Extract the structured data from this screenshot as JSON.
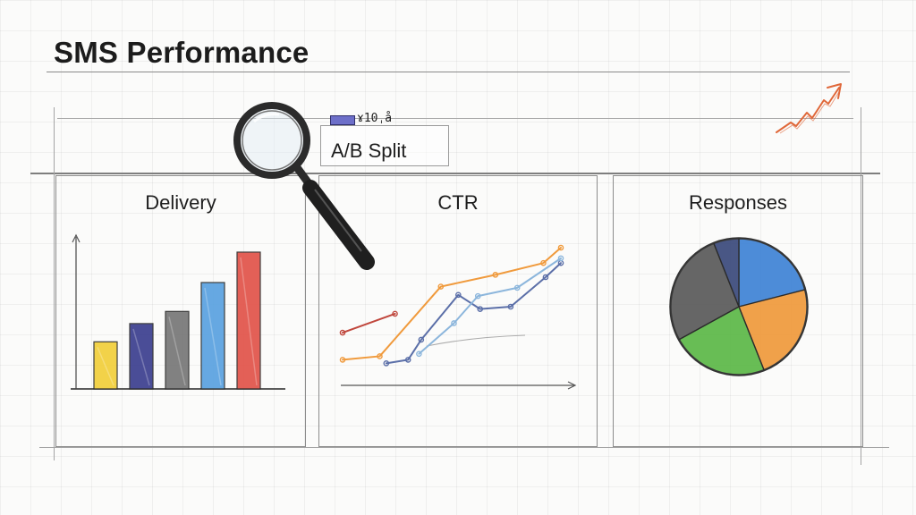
{
  "page": {
    "title": "SMS Performance",
    "ab_label": "A/B Split",
    "ab_legend_text": "ɤ10ˌå"
  },
  "icons": [
    "magnifier-icon",
    "trend-up-arrow-icon"
  ],
  "colors": {
    "yellow": "#f2cf3a",
    "navy": "#3c3f8f",
    "gray": "#777777",
    "blue": "#5aa2e0",
    "red": "#e2534a",
    "orange": "#f09a3c",
    "green": "#5cb848",
    "slate": "#5b6fa8",
    "light_blue": "#8cb6dc",
    "dark_red": "#c0473d",
    "pie_blue": "#3f83d6",
    "pie_dark": "#5a5a5a",
    "pie_navy": "#3a4a7c",
    "arrow": "#e0683a"
  },
  "chart_data": [
    {
      "type": "bar",
      "title": "Delivery",
      "categories": [
        "",
        "",
        "",
        "",
        ""
      ],
      "values": [
        31,
        43,
        51,
        70,
        90
      ],
      "ylim": [
        0,
        100
      ],
      "colors": [
        "#f2cf3a",
        "#3c3f8f",
        "#777777",
        "#5aa2e0",
        "#e2534a"
      ],
      "grid": true
    },
    {
      "type": "line",
      "title": "CTR",
      "ylim": [
        0,
        100
      ],
      "xlim": [
        0,
        100
      ],
      "series": [
        {
          "color": "#c0473d",
          "x": [
            0,
            24
          ],
          "y": [
            28,
            44
          ]
        },
        {
          "color": "#f09a3c",
          "x": [
            0,
            17,
            45,
            70,
            92,
            100
          ],
          "y": [
            5,
            8,
            67,
            77,
            87,
            100
          ]
        },
        {
          "color": "#5b6fa8",
          "x": [
            20,
            30,
            36,
            53,
            63,
            77,
            93,
            100
          ],
          "y": [
            2,
            5,
            22,
            60,
            48,
            50,
            75,
            87
          ]
        },
        {
          "color": "#8cb6dc",
          "x": [
            35,
            51,
            62,
            80,
            100
          ],
          "y": [
            10,
            36,
            59,
            66,
            91
          ]
        }
      ],
      "grid": true
    },
    {
      "type": "pie",
      "title": "Responses",
      "slices": [
        {
          "value": 21,
          "color": "#3f83d6"
        },
        {
          "value": 23,
          "color": "#f09a3c"
        },
        {
          "value": 23,
          "color": "#5cb848"
        },
        {
          "value": 27,
          "color": "#5a5a5a"
        },
        {
          "value": 6,
          "color": "#3a4a7c"
        }
      ]
    }
  ]
}
